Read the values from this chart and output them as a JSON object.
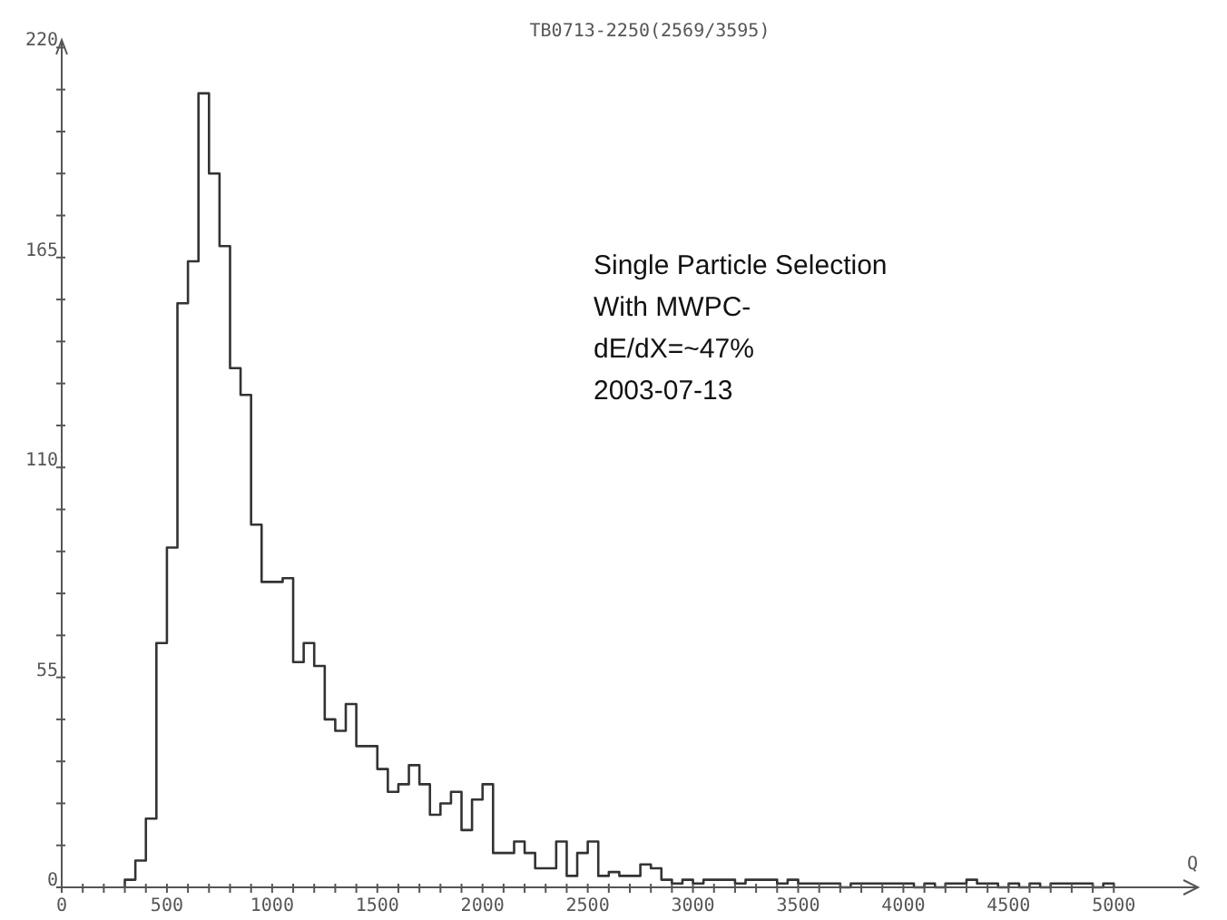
{
  "chart_data": {
    "type": "histogram",
    "title": "TB0713-2250(2569/3595)",
    "xlabel": "Q",
    "annotations": [
      "Single Particle Selection",
      "With MWPC-",
      "dE/dX=~47%",
      "2003-07-13"
    ],
    "bins": [
      300,
      350,
      400,
      450,
      500,
      550,
      600,
      650,
      700,
      750,
      800,
      850,
      900,
      950,
      1000,
      1050,
      1100,
      1150,
      1200,
      1250,
      1300,
      1350,
      1400,
      1450,
      1500,
      1550,
      1600,
      1650,
      1700,
      1750,
      1800,
      1850,
      1900,
      1950,
      2000,
      2050,
      2100,
      2150,
      2200,
      2250,
      2300,
      2350,
      2400,
      2450,
      2500,
      2550,
      2600,
      2650,
      2700,
      2750,
      2800,
      2850,
      2900,
      2950,
      3000,
      3050,
      3100,
      3150,
      3200,
      3250,
      3300,
      3350,
      3400,
      3450,
      3500,
      3550,
      3600,
      3650,
      3700,
      3750,
      3800,
      3850,
      3900,
      3950,
      4000,
      4050,
      4100,
      4150,
      4200,
      4250,
      4300,
      4350,
      4400,
      4450,
      4500,
      4550,
      4600,
      4650,
      4700,
      4750,
      4800,
      4850,
      4900,
      4950,
      5000
    ],
    "values": [
      2,
      7,
      18,
      64,
      89,
      153,
      164,
      208,
      187,
      168,
      136,
      129,
      95,
      80,
      80,
      81,
      59,
      64,
      58,
      44,
      41,
      48,
      37,
      37,
      31,
      25,
      27,
      32,
      27,
      19,
      22,
      25,
      15,
      23,
      27,
      9,
      9,
      12,
      9,
      5,
      5,
      12,
      3,
      9,
      12,
      3,
      4,
      3,
      3,
      6,
      5,
      2,
      1,
      2,
      1,
      2,
      2,
      2,
      1,
      2,
      2,
      2,
      1,
      2,
      1,
      1,
      1,
      1,
      0,
      1,
      1,
      1,
      1,
      1,
      1,
      0,
      1,
      0,
      1,
      1,
      2,
      1,
      1,
      0,
      1,
      0,
      1,
      0,
      1,
      1,
      1,
      1,
      0,
      1
    ],
    "color": "#333333",
    "xlim": [
      0,
      5400
    ],
    "ylim": [
      0,
      222
    ],
    "xticks": [
      0,
      {
        "value": 100,
        "label": null
      },
      {
        "value": 200,
        "label": null
      },
      {
        "value": 300,
        "label": null
      },
      {
        "value": 400,
        "label": null
      },
      500,
      {
        "value": 600,
        "label": null
      },
      {
        "value": 700,
        "label": null
      },
      {
        "value": 800,
        "label": null
      },
      {
        "value": 900,
        "label": null
      },
      1000,
      {
        "value": 1100,
        "label": null
      },
      {
        "value": 1200,
        "label": null
      },
      {
        "value": 1300,
        "label": null
      },
      {
        "value": 1400,
        "label": null
      },
      1500,
      {
        "value": 1600,
        "label": null
      },
      {
        "value": 1700,
        "label": null
      },
      {
        "value": 1800,
        "label": null
      },
      {
        "value": 1900,
        "label": null
      },
      2000,
      {
        "value": 2100,
        "label": null
      },
      {
        "value": 2200,
        "label": null
      },
      {
        "value": 2300,
        "label": null
      },
      {
        "value": 2400,
        "label": null
      },
      2500,
      {
        "value": 2600,
        "label": null
      },
      {
        "value": 2700,
        "label": null
      },
      {
        "value": 2800,
        "label": null
      },
      {
        "value": 2900,
        "label": null
      },
      3000,
      {
        "value": 3100,
        "label": null
      },
      {
        "value": 3200,
        "label": null
      },
      {
        "value": 3300,
        "label": null
      },
      {
        "value": 3400,
        "label": null
      },
      3500,
      {
        "value": 3600,
        "label": null
      },
      {
        "value": 3700,
        "label": null
      },
      {
        "value": 3800,
        "label": null
      },
      {
        "value": 3900,
        "label": null
      },
      4000,
      {
        "value": 4100,
        "label": null
      },
      {
        "value": 4200,
        "label": null
      },
      {
        "value": 4300,
        "label": null
      },
      {
        "value": 4400,
        "label": null
      },
      4500,
      {
        "value": 4600,
        "label": null
      },
      {
        "value": 4700,
        "label": null
      },
      {
        "value": 4800,
        "label": null
      },
      {
        "value": 4900,
        "label": null
      },
      5000
    ],
    "yticks": [
      0,
      {
        "value": 11,
        "label": null
      },
      {
        "value": 22,
        "label": null
      },
      {
        "value": 33,
        "label": null
      },
      {
        "value": 44,
        "label": null
      },
      55,
      {
        "value": 66,
        "label": null
      },
      {
        "value": 77,
        "label": null
      },
      {
        "value": 88,
        "label": null
      },
      {
        "value": 99,
        "label": null
      },
      110,
      {
        "value": 121,
        "label": null
      },
      {
        "value": 132,
        "label": null
      },
      {
        "value": 143,
        "label": null
      },
      {
        "value": 154,
        "label": null
      },
      165,
      {
        "value": 176,
        "label": null
      },
      {
        "value": 187,
        "label": null
      },
      {
        "value": 198,
        "label": null
      },
      {
        "value": 209,
        "label": null
      },
      220
    ],
    "grid": false
  }
}
